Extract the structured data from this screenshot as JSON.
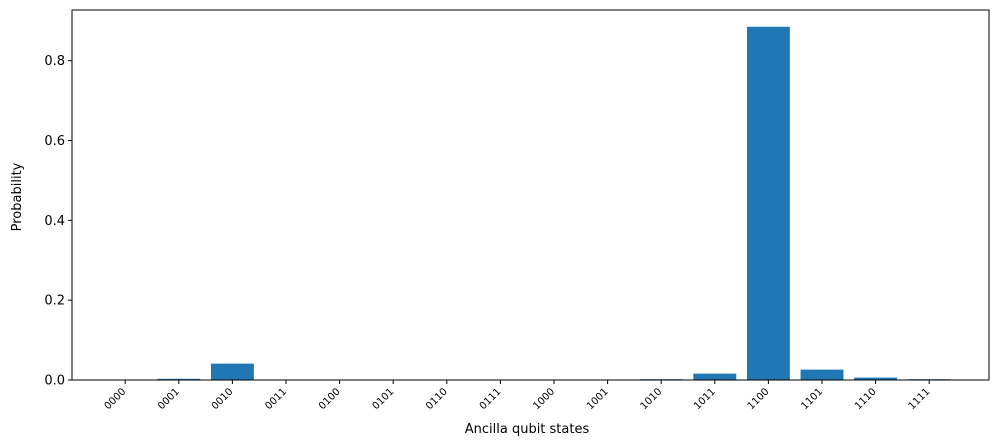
{
  "chart_data": {
    "type": "bar",
    "categories": [
      "0000",
      "0001",
      "0010",
      "0011",
      "0100",
      "0101",
      "0110",
      "0111",
      "1000",
      "1001",
      "1010",
      "1011",
      "1100",
      "1101",
      "1110",
      "1111"
    ],
    "values": [
      0.0,
      0.003,
      0.041,
      0.0,
      0.0,
      0.0,
      0.0,
      0.0,
      0.0,
      0.0,
      0.002,
      0.016,
      0.885,
      0.026,
      0.006,
      0.002
    ],
    "title": "",
    "xlabel": "Ancilla qubit states",
    "ylabel": "Probability",
    "ylim": [
      0,
      0.927
    ],
    "yticks": [
      "0.0",
      "0.2",
      "0.4",
      "0.6",
      "0.8"
    ],
    "grid": false,
    "bar_color": "#1f77b4"
  }
}
